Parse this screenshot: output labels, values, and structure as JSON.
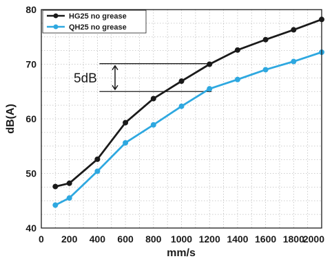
{
  "chart_data": {
    "type": "line",
    "xlabel": "mm/s",
    "ylabel": "dB(A)",
    "xlim": [
      0,
      2000
    ],
    "ylim": [
      40,
      80
    ],
    "xticks": [
      0,
      200,
      400,
      600,
      800,
      1000,
      1200,
      1400,
      1600,
      1800,
      2000
    ],
    "yticks": [
      40,
      50,
      60,
      70,
      80
    ],
    "grid": true,
    "legend_position": "top-left",
    "series": [
      {
        "name": "HG25 no grease",
        "color": "#1a1a1a",
        "x": [
          100,
          200,
          400,
          600,
          800,
          1000,
          1200,
          1400,
          1600,
          1800,
          2000
        ],
        "y": [
          47.6,
          48.2,
          52.6,
          59.3,
          63.7,
          66.9,
          70.0,
          72.6,
          74.5,
          76.3,
          78.2
        ]
      },
      {
        "name": "QH25 no grease",
        "color": "#2ea8e0",
        "x": [
          100,
          200,
          400,
          600,
          800,
          1000,
          1200,
          1400,
          1600,
          1800,
          2000
        ],
        "y": [
          44.2,
          45.5,
          50.4,
          55.6,
          58.9,
          62.3,
          65.5,
          67.2,
          69.0,
          70.5,
          72.2
        ]
      }
    ],
    "annotations": [
      {
        "text": "5dB",
        "y_top": 70.1,
        "y_bottom": 65.0,
        "x_from": 400,
        "x_to": 1200
      }
    ]
  }
}
